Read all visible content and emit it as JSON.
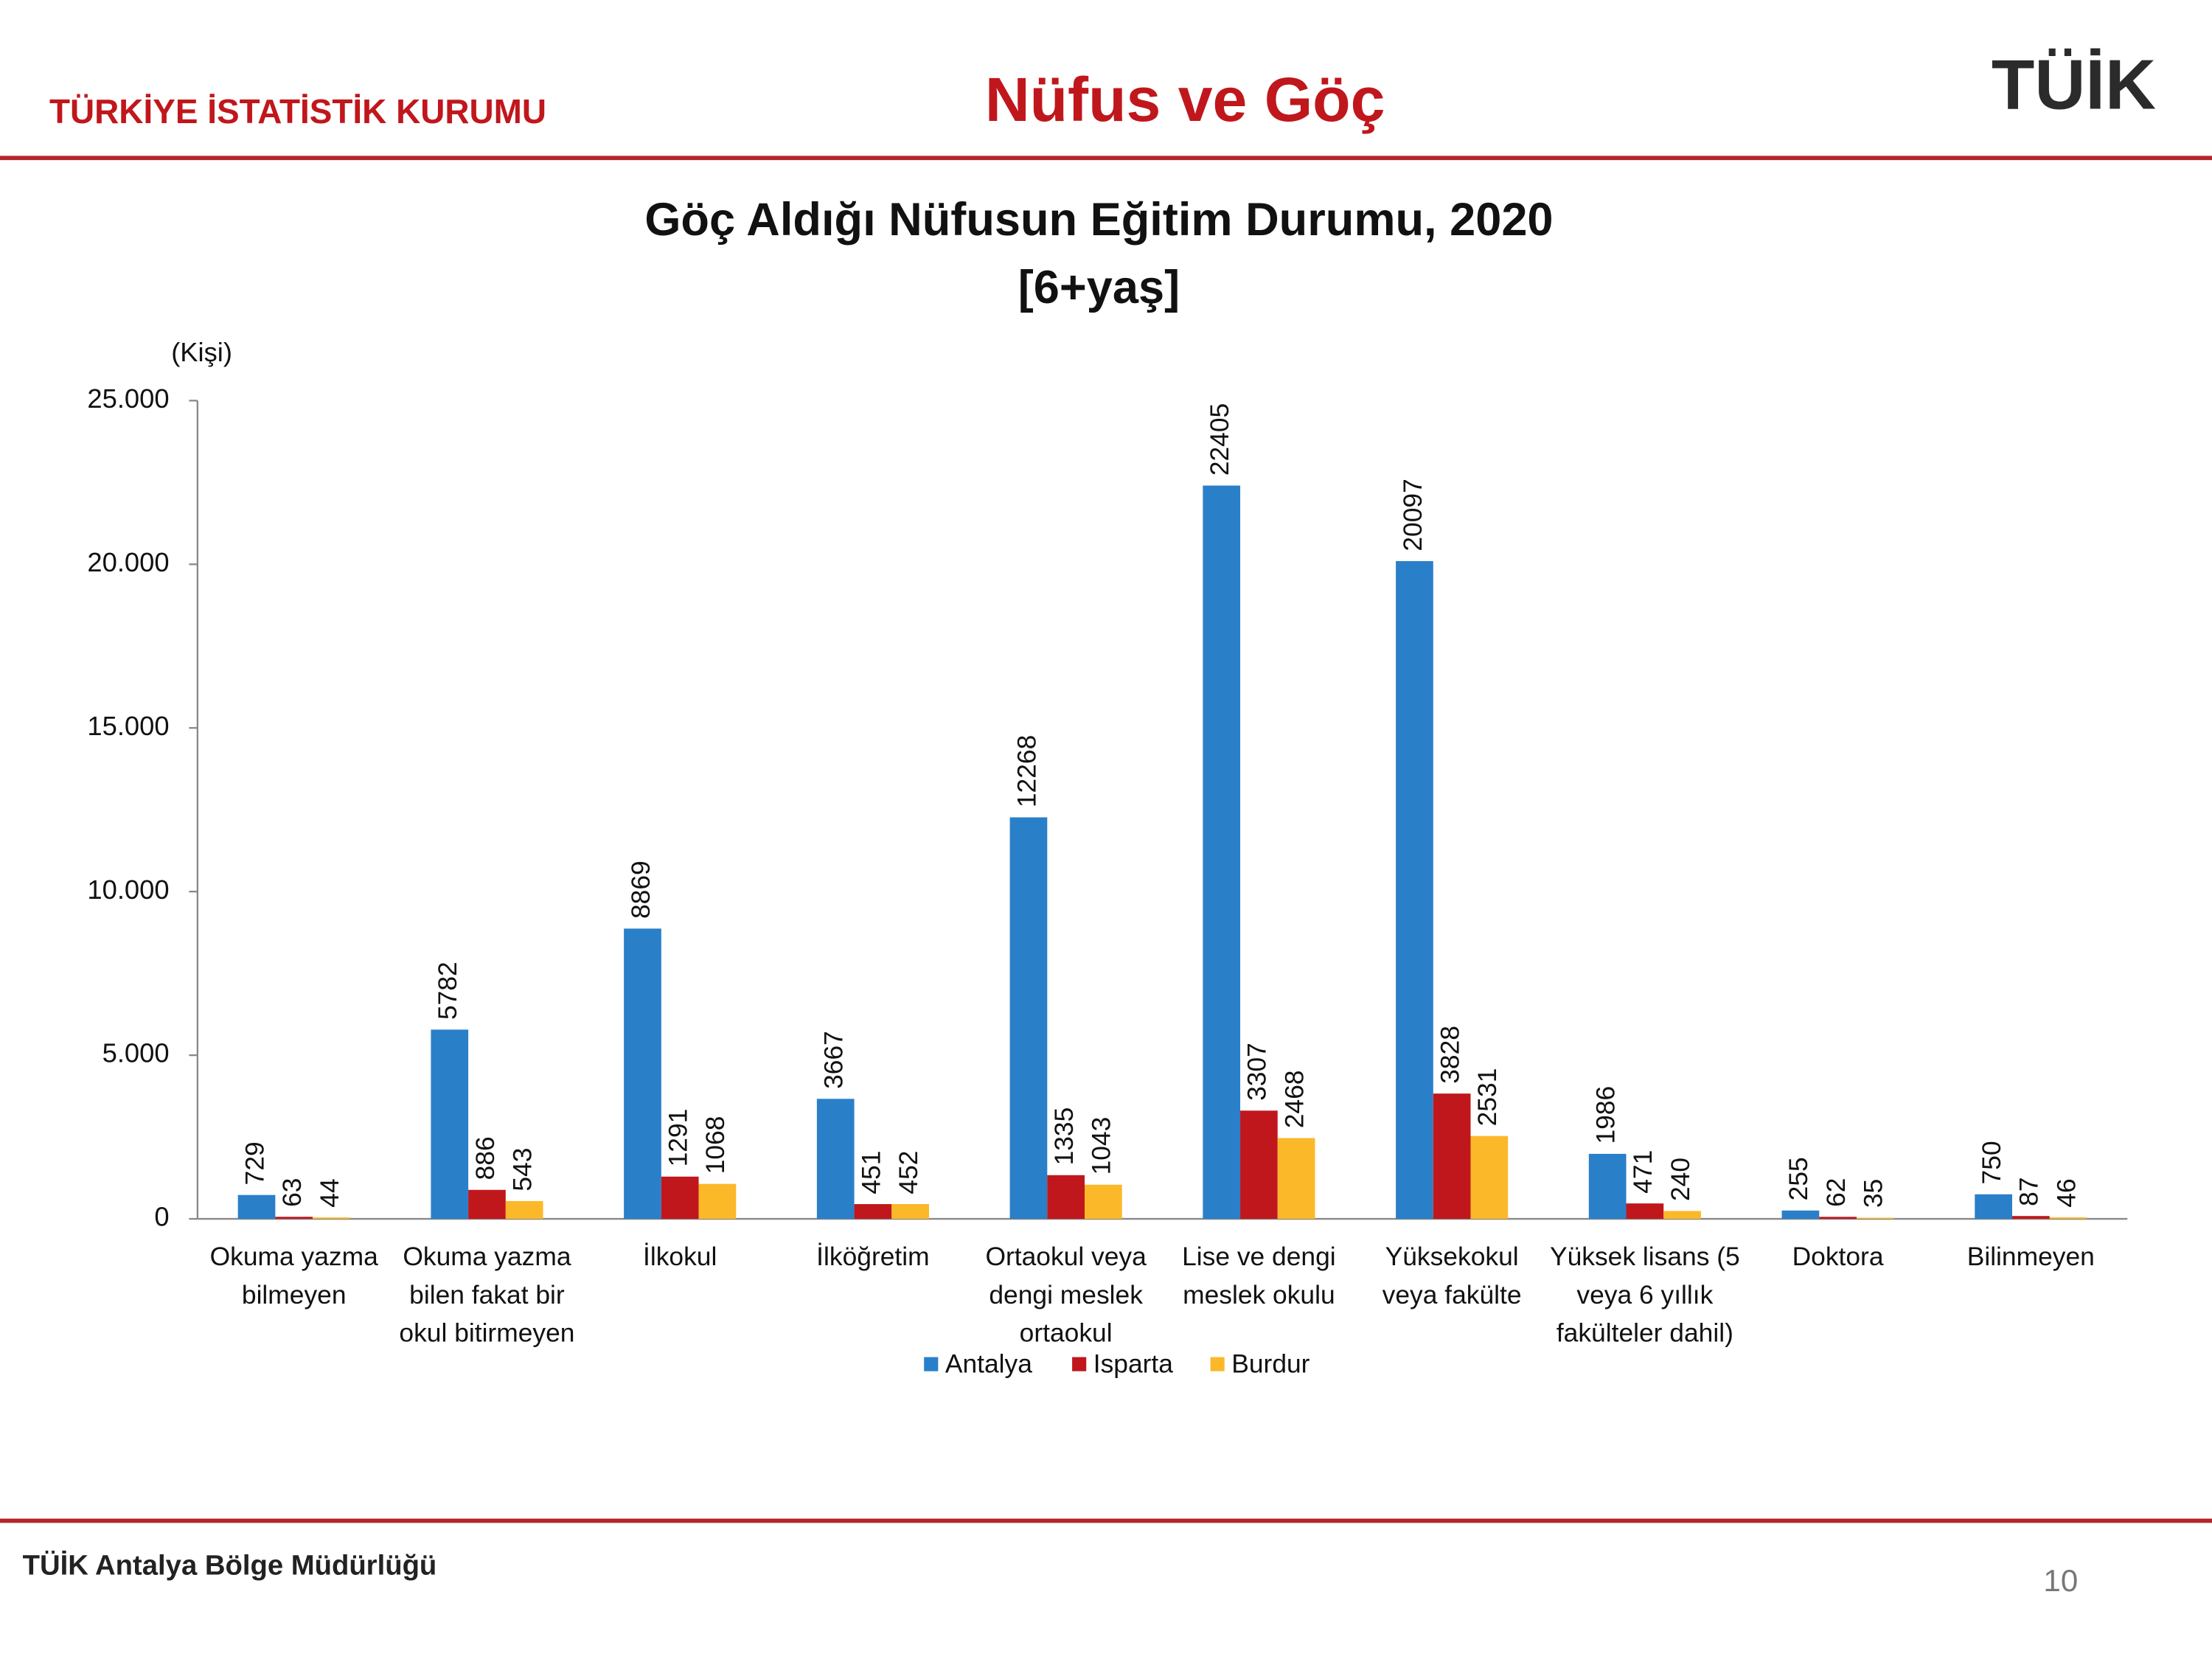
{
  "header": {
    "organization": "TÜRKİYE İSTATİSTİK KURUMU",
    "title": "Nüfus ve Göç",
    "logo": "TÜİK"
  },
  "footer": {
    "office": "TÜİK Antalya Bölge Müdürlüğü",
    "page": "10"
  },
  "chart_data": {
    "type": "bar",
    "title": "Göç Aldığı Nüfusun Eğitim Durumu, 2020",
    "subtitle": "[6+yaş]",
    "y_label": "(Kişi)",
    "categories": [
      "Okuma yazma bilmeyen",
      "Okuma yazma bilen fakat bir okul bitirmeyen",
      "İlkokul",
      "İlköğretim",
      "Ortaokul veya dengi meslek ortaokul",
      "Lise ve dengi meslek okulu",
      "Yüksekokul veya fakülte",
      "Yüksek lisans (5 veya 6 yıllık fakülteler dahil)",
      "Doktora",
      "Bilinmeyen"
    ],
    "series": [
      {
        "name": "Antalya",
        "color": "#2a7fc9",
        "values": [
          729,
          5782,
          8869,
          3667,
          12268,
          22405,
          20097,
          1986,
          255,
          750
        ]
      },
      {
        "name": "Isparta",
        "color": "#c0171c",
        "values": [
          63,
          886,
          1291,
          451,
          1335,
          3307,
          3828,
          471,
          62,
          87
        ]
      },
      {
        "name": "Burdur",
        "color": "#fbb829",
        "values": [
          44,
          543,
          1068,
          452,
          1043,
          2468,
          2531,
          240,
          35,
          46
        ]
      }
    ],
    "ylim": [
      0,
      25000
    ],
    "yticks": [
      0,
      {
        "value": 5000,
        "label": "5.000"
      },
      {
        "value": 10000,
        "label": "10.000"
      },
      {
        "value": 15000,
        "label": "15.000"
      },
      {
        "value": 20000,
        "label": "20.000"
      },
      {
        "value": 25000,
        "label": "25.000"
      }
    ],
    "grid": false,
    "legend": "bottom"
  }
}
